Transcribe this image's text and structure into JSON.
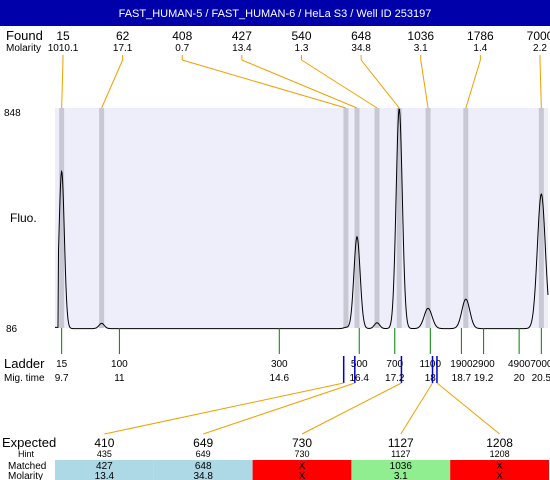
{
  "header": {
    "title": "FAST_HUMAN-5 / FAST_HUMAN-6 / HeLa S3 / Well ID 253197"
  },
  "labels": {
    "found": "Found",
    "molarity": "Molarity",
    "fluo": "Fluo.",
    "ladder": "Ladder",
    "mig_time": "Mig. time",
    "expected": "Expected",
    "hint": "Hint",
    "matched": "Matched",
    "molarity_row": "Molarity"
  },
  "colors": {
    "header_bg": "#0000aa",
    "header_text": "#ffffff",
    "plot_bg": "#eeeefb",
    "peak_band": "#c8c8d4",
    "trace": "#000000",
    "connector": "#f0a000",
    "ladder_tick": "#008000",
    "marker_tick": "#0000cc",
    "match_blue": "#add8e6",
    "match_green": "#90ee90",
    "match_red": "#ff0000"
  },
  "chart_data": {
    "type": "line",
    "title": "FAST_HUMAN-5 / FAST_HUMAN-6 / HeLa S3 / Well ID 253197",
    "ylabel": "Fluo.",
    "ylim": [
      86,
      848
    ],
    "y_ticks": [
      "848",
      "86"
    ],
    "x_axis": "migration time",
    "xlim": [
      9.55,
      20.65
    ],
    "found_peaks": [
      {
        "size": "15",
        "molarity": "1010.1",
        "mig_time": 9.7
      },
      {
        "size": "62",
        "molarity": "17.1",
        "mig_time": 10.6
      },
      {
        "size": "408",
        "molarity": "0.7",
        "mig_time": 16.1
      },
      {
        "size": "427",
        "molarity": "13.4",
        "mig_time": 16.35
      },
      {
        "size": "540",
        "molarity": "1.3",
        "mig_time": 16.8
      },
      {
        "size": "648",
        "molarity": "34.8",
        "mig_time": 17.3
      },
      {
        "size": "1036",
        "molarity": "3.1",
        "mig_time": 17.95
      },
      {
        "size": "1786",
        "molarity": "1.4",
        "mig_time": 18.8
      },
      {
        "size": "7000",
        "molarity": "2.2",
        "mig_time": 20.5
      }
    ],
    "ladder": [
      {
        "size": "15",
        "mig_time": "9.7",
        "t": 9.7
      },
      {
        "size": "100",
        "mig_time": "11",
        "t": 11.0
      },
      {
        "size": "300",
        "mig_time": "14.6",
        "t": 14.6
      },
      {
        "size": "500",
        "mig_time": "16.4",
        "t": 16.4
      },
      {
        "size": "700",
        "mig_time": "17.2",
        "t": 17.2
      },
      {
        "size": "1100",
        "mig_time": "18",
        "t": 18.0
      },
      {
        "size": "1900",
        "mig_time": "18.7",
        "t": 18.7
      },
      {
        "size": "2900",
        "mig_time": "19.2",
        "t": 19.2
      },
      {
        "size": "4900",
        "mig_time": "20",
        "t": 20.0
      },
      {
        "size": "7000",
        "mig_time": "20.5",
        "t": 20.5
      }
    ],
    "trace_peaks": [
      {
        "t": 9.7,
        "height": 545,
        "width": 0.06
      },
      {
        "t": 10.6,
        "height": 18,
        "width": 0.06
      },
      {
        "t": 16.1,
        "height": 4,
        "width": 0.05
      },
      {
        "t": 16.35,
        "height": 318,
        "width": 0.07
      },
      {
        "t": 16.8,
        "height": 20,
        "width": 0.06
      },
      {
        "t": 17.3,
        "height": 762,
        "width": 0.07
      },
      {
        "t": 17.95,
        "height": 70,
        "width": 0.09
      },
      {
        "t": 18.8,
        "height": 102,
        "width": 0.09
      },
      {
        "t": 20.5,
        "height": 466,
        "width": 0.09
      }
    ],
    "expected_markers": [
      {
        "size": "410",
        "mig_time": 16.05
      },
      {
        "size": "649",
        "mig_time": 16.3
      },
      {
        "size": "730",
        "mig_time": 17.35
      },
      {
        "size": "1127",
        "mig_time": 18.05
      },
      {
        "size": "1208",
        "mig_time": 18.15
      }
    ],
    "expected_table": [
      {
        "expected": "410",
        "hint": "435",
        "matched": "427",
        "molarity": "13.4",
        "status": "matched"
      },
      {
        "expected": "649",
        "hint": "649",
        "matched": "648",
        "molarity": "34.8",
        "status": "matched"
      },
      {
        "expected": "730",
        "hint": "730",
        "matched": "X",
        "molarity": "X",
        "status": "missing"
      },
      {
        "expected": "1127",
        "hint": "1127",
        "matched": "1036",
        "molarity": "3.1",
        "status": "near"
      },
      {
        "expected": "1208",
        "hint": "1208",
        "matched": "X",
        "molarity": "X",
        "status": "missing"
      }
    ]
  }
}
